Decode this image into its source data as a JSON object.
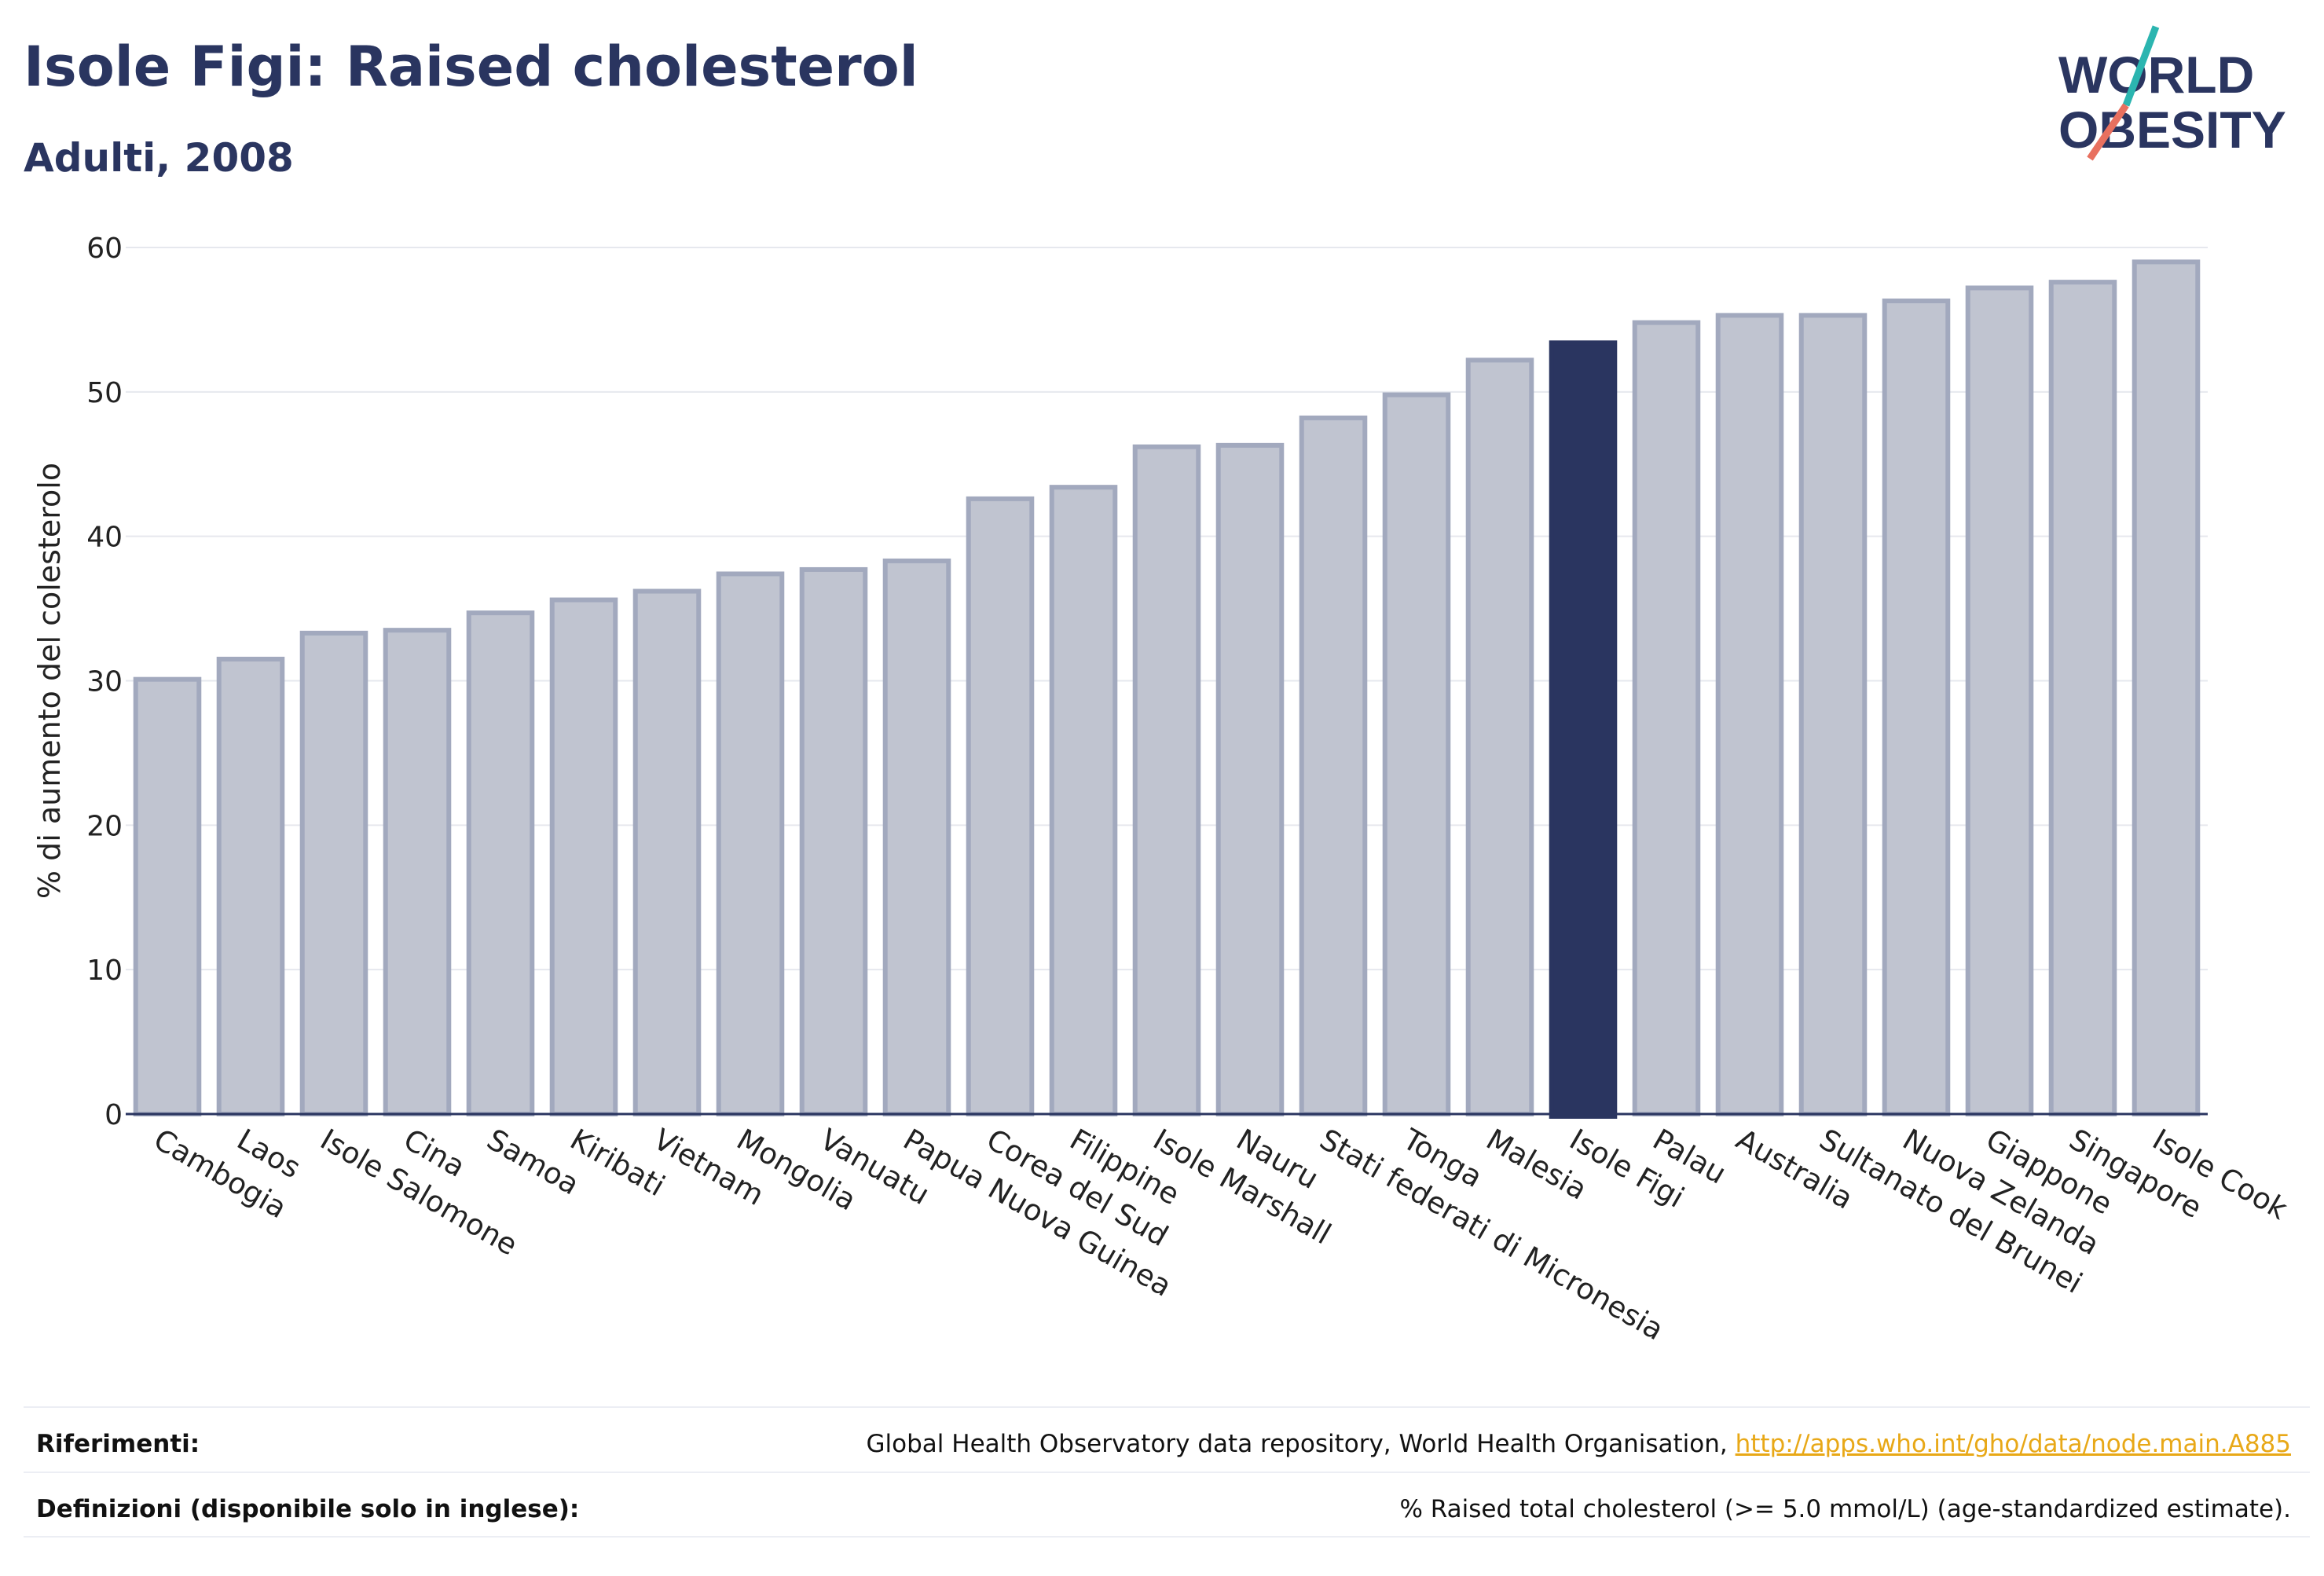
{
  "header": {
    "title": "Isole Figi: Raised cholesterol",
    "subtitle": "Adulti, 2008"
  },
  "logo": {
    "line1": "WORLD",
    "line2": "OBESITY",
    "colors": {
      "text": "#2a3560",
      "accent_teal": "#2bb5b0",
      "accent_coral": "#e8705f"
    }
  },
  "chart_data": {
    "type": "bar",
    "ylabel": "% di aumento del colesterolo",
    "ylim": [
      0,
      60
    ],
    "yticks": [
      0,
      10,
      20,
      30,
      40,
      50,
      60
    ],
    "grid": true,
    "highlight": "Isole Figi",
    "colors": {
      "bar": "#c0c4d0",
      "bar_border": "#a2a9be",
      "highlight": "#2a3560",
      "axis": "#2a3560",
      "grid": "#e6e8ee"
    },
    "categories": [
      "Cambogia",
      "Laos",
      "Isole Salomone",
      "Cina",
      "Samoa",
      "Kiribati",
      "Vietnam",
      "Mongolia",
      "Vanuatu",
      "Papua Nuova Guinea",
      "Corea del Sud",
      "Filippine",
      "Isole Marshall",
      "Nauru",
      "Stati federati di Micronesia",
      "Tonga",
      "Malesia",
      "Isole Figi",
      "Palau",
      "Australia",
      "Sultanato del Brunei",
      "Nuova Zelanda",
      "Giappone",
      "Singapore",
      "Isole Cook"
    ],
    "values": [
      30.1,
      31.5,
      33.3,
      33.5,
      34.7,
      35.6,
      36.2,
      37.4,
      37.7,
      38.3,
      42.6,
      43.4,
      46.2,
      46.3,
      48.2,
      49.8,
      52.2,
      53.4,
      54.8,
      55.3,
      55.3,
      56.3,
      57.2,
      57.6,
      59.0
    ]
  },
  "footer": {
    "references_label": "Riferimenti:",
    "references_text": "Global Health Observatory data repository, World Health Organisation, ",
    "references_link": "http://apps.who.int/gho/data/node.main.A885",
    "definitions_label": "Definizioni (disponibile solo in inglese):",
    "definitions_text": "% Raised total cholesterol (>= 5.0 mmol/L) (age-standardized estimate)."
  }
}
